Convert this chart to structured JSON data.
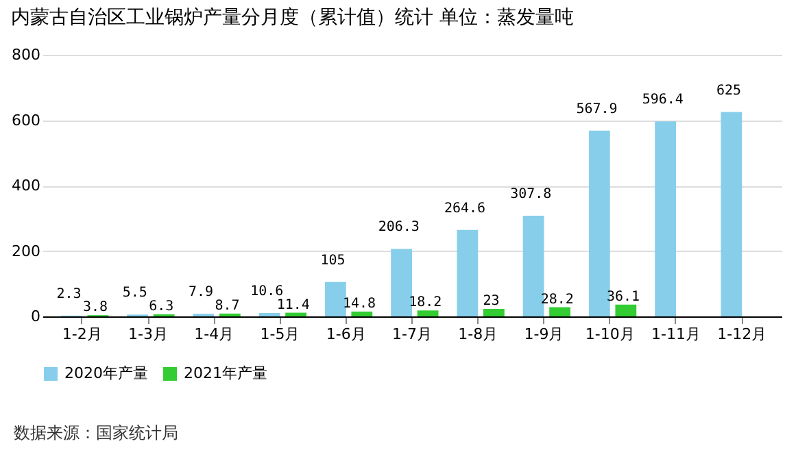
{
  "chart_data": {
    "type": "bar",
    "title": "内蒙古自治区工业锅炉产量分月度（累计值）统计 单位：蒸发量吨",
    "categories": [
      "1-2月",
      "1-3月",
      "1-4月",
      "1-5月",
      "1-6月",
      "1-7月",
      "1-8月",
      "1-9月",
      "1-10月",
      "1-11月",
      "1-12月"
    ],
    "series": [
      {
        "name": "2020年产量",
        "color": "#87ceeb",
        "values": [
          2.3,
          5.5,
          7.9,
          10.6,
          105,
          206.3,
          264.6,
          307.8,
          567.9,
          596.4,
          625
        ]
      },
      {
        "name": "2021年产量",
        "color": "#33cc33",
        "values": [
          3.8,
          6.3,
          8.7,
          11.4,
          14.8,
          18.2,
          23,
          28.2,
          36.1,
          null,
          null
        ]
      }
    ],
    "ylim": [
      0,
      800
    ],
    "yticks": [
      0,
      200,
      400,
      600,
      800
    ],
    "grid": "y",
    "legend": "bottom",
    "data_labels": true,
    "annotations": [
      "数据来源：国家统计局"
    ]
  }
}
